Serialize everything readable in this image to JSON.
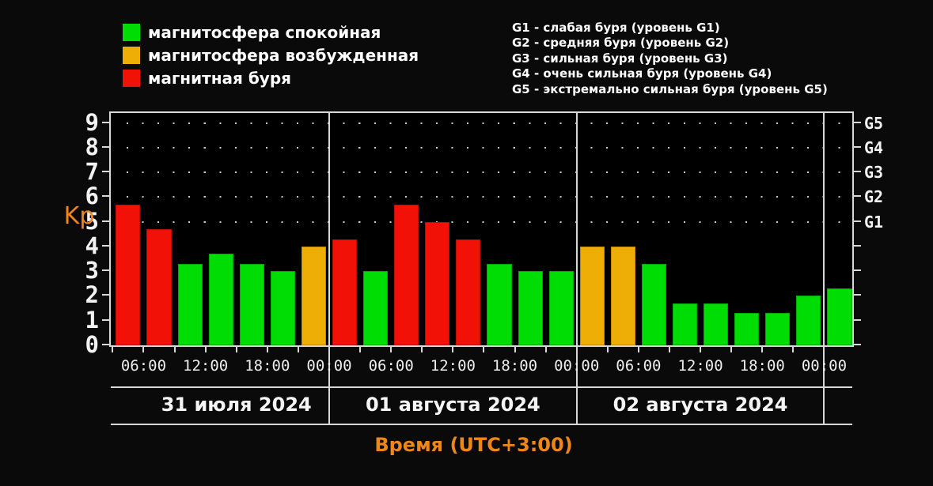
{
  "legend": {
    "items": [
      {
        "label": "магнитосфера спокойная",
        "level": "quiet"
      },
      {
        "label": "магнитосфера возбужденная",
        "level": "excited"
      },
      {
        "label": "магнитная буря",
        "level": "storm"
      }
    ]
  },
  "storm_legend": {
    "lines": [
      "G1 - слабая буря (уровень G1)",
      "G2 - средняя буря (уровень G2)",
      "G3 - сильная буря (уровень G3)",
      "G4 - очень сильная буря (уровень G4)",
      "G5 - экстремально сильная буря (уровень G5)"
    ]
  },
  "levels": {
    "quiet": {
      "color": "#00dd05",
      "border": "#00a804"
    },
    "excited": {
      "color": "#efae06",
      "border": "#c08a00"
    },
    "storm": {
      "color": "#f21107",
      "border": "#bc0d05"
    }
  },
  "colors": {
    "background": "#0a0a0a",
    "plot_background": "#000000",
    "frame": "#d8d8d8",
    "text": "#ffffff",
    "accent_orange": "#ee8717",
    "grid_dot": "#c8c8c8"
  },
  "chart_data": {
    "type": "bar",
    "ylabel": "Kp",
    "xlabel": "Время (UTC+3:00)",
    "ylim": [
      0,
      9.4
    ],
    "yticks": [
      "0",
      "1",
      "2",
      "3",
      "4",
      "5",
      "6",
      "7",
      "8",
      "9"
    ],
    "right_axis": [
      {
        "label": "G1",
        "kp": 5
      },
      {
        "label": "G2",
        "kp": 6
      },
      {
        "label": "G3",
        "kp": 7
      },
      {
        "label": "G4",
        "kp": 8
      },
      {
        "label": "G5",
        "kp": 9
      }
    ],
    "grid_dot_rows_kp": [
      5,
      6,
      7,
      8,
      9
    ],
    "slot_hours": 3,
    "time_ticks": [
      {
        "label": "06:00",
        "hour": -18
      },
      {
        "label": "12:00",
        "hour": -12
      },
      {
        "label": "18:00",
        "hour": -6
      },
      {
        "label": "00:00",
        "hour": 0
      },
      {
        "label": "06:00",
        "hour": 6
      },
      {
        "label": "12:00",
        "hour": 12
      },
      {
        "label": "18:00",
        "hour": 18
      },
      {
        "label": "00:00",
        "hour": 24
      },
      {
        "label": "06:00",
        "hour": 30
      },
      {
        "label": "12:00",
        "hour": 36
      },
      {
        "label": "18:00",
        "hour": 42
      },
      {
        "label": "00:00",
        "hour": 48
      }
    ],
    "days": [
      {
        "label": "31 июля 2024",
        "start_hour": -21,
        "bars": [
          {
            "kp": 5.7,
            "level": "storm"
          },
          {
            "kp": 4.7,
            "level": "storm"
          },
          {
            "kp": 3.3,
            "level": "quiet"
          },
          {
            "kp": 3.7,
            "level": "quiet"
          },
          {
            "kp": 3.3,
            "level": "quiet"
          },
          {
            "kp": 3.0,
            "level": "quiet"
          },
          {
            "kp": 4.0,
            "level": "excited"
          }
        ]
      },
      {
        "label": "01 августа 2024",
        "start_hour": 0,
        "bars": [
          {
            "kp": 4.3,
            "level": "storm"
          },
          {
            "kp": 3.0,
            "level": "quiet"
          },
          {
            "kp": 5.7,
            "level": "storm"
          },
          {
            "kp": 5.0,
            "level": "storm"
          },
          {
            "kp": 4.3,
            "level": "storm"
          },
          {
            "kp": 3.3,
            "level": "quiet"
          },
          {
            "kp": 3.0,
            "level": "quiet"
          },
          {
            "kp": 3.0,
            "level": "quiet"
          }
        ]
      },
      {
        "label": "02 августа 2024",
        "start_hour": 24,
        "bars": [
          {
            "kp": 4.0,
            "level": "excited"
          },
          {
            "kp": 4.0,
            "level": "excited"
          },
          {
            "kp": 3.3,
            "level": "quiet"
          },
          {
            "kp": 1.7,
            "level": "quiet"
          },
          {
            "kp": 1.7,
            "level": "quiet"
          },
          {
            "kp": 1.3,
            "level": "quiet"
          },
          {
            "kp": 1.3,
            "level": "quiet"
          },
          {
            "kp": 2.0,
            "level": "quiet"
          }
        ]
      },
      {
        "label": "",
        "start_hour": 48,
        "bars": [
          {
            "kp": 2.3,
            "level": "quiet"
          }
        ]
      }
    ]
  }
}
